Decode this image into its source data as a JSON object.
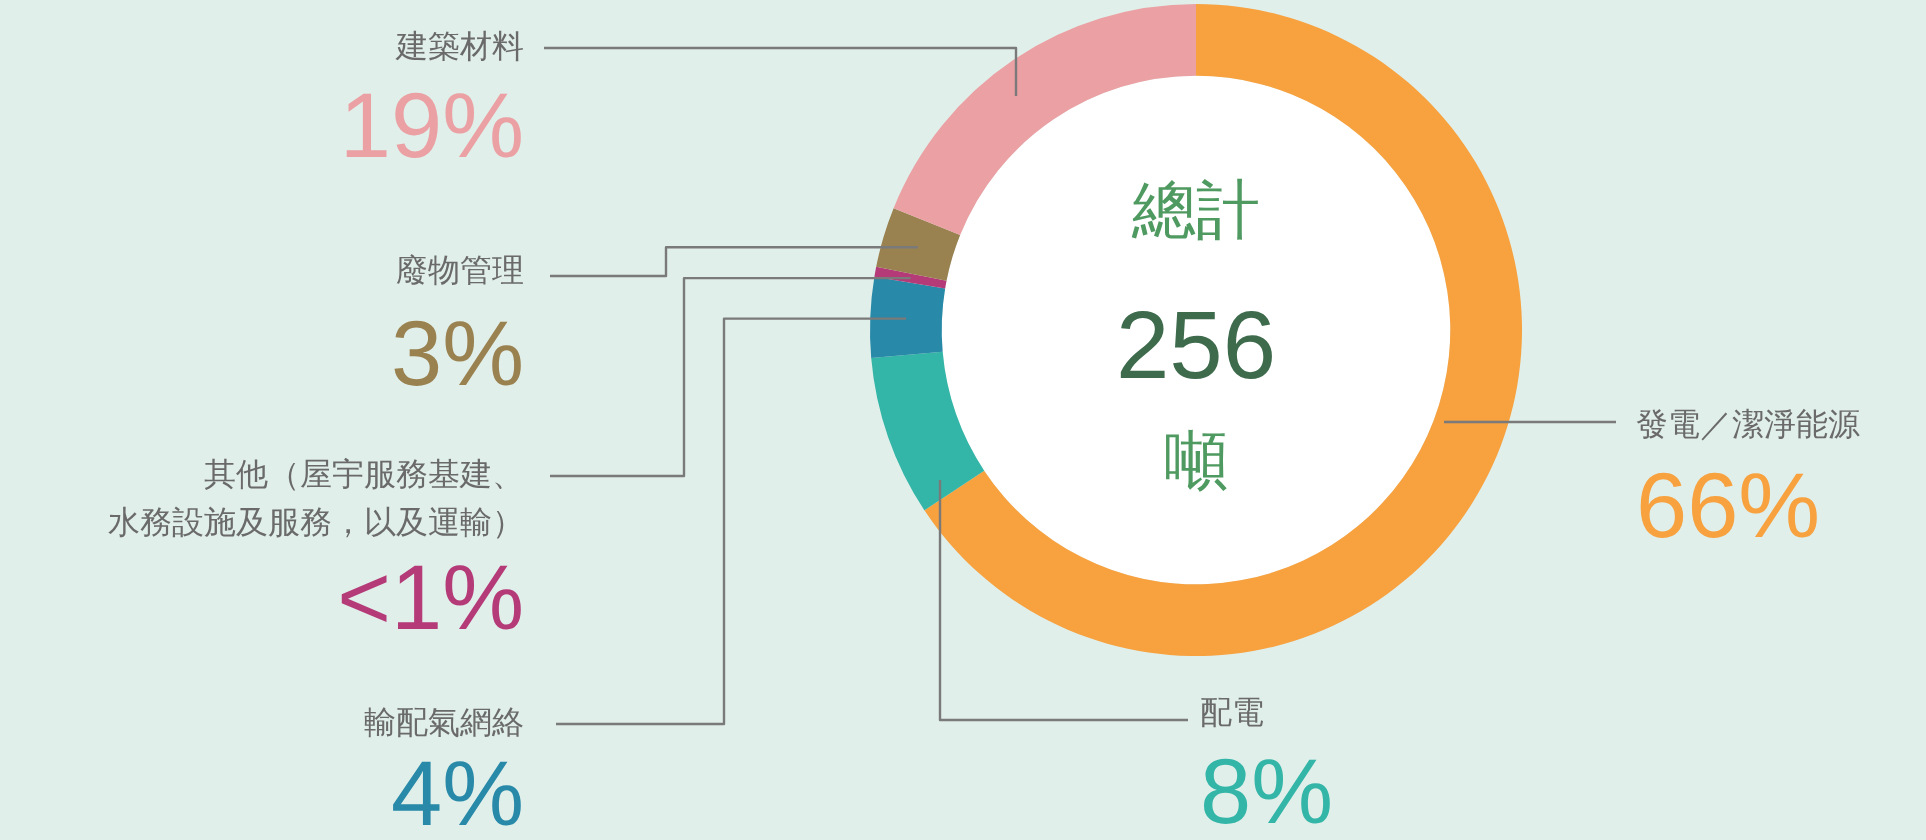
{
  "chart_data": {
    "type": "donut",
    "categories": [
      "發電／潔淨能源",
      "配電",
      "輸配氣網絡",
      "其他（屋宇服務基建、水務設施及服務，以及運輸）",
      "廢物管理",
      "建築材料"
    ],
    "values": [
      66,
      8,
      4,
      0.5,
      3,
      19
    ],
    "value_labels": [
      "66%",
      "8%",
      "4%",
      "<1%",
      "3%",
      "19%"
    ],
    "colors": [
      "#f7a13f",
      "#33b5a7",
      "#2889a8",
      "#b43a78",
      "#9a8150",
      "#eba0a3"
    ],
    "annotations": [
      "總計",
      "256",
      "噸"
    ],
    "legend": false
  }
}
